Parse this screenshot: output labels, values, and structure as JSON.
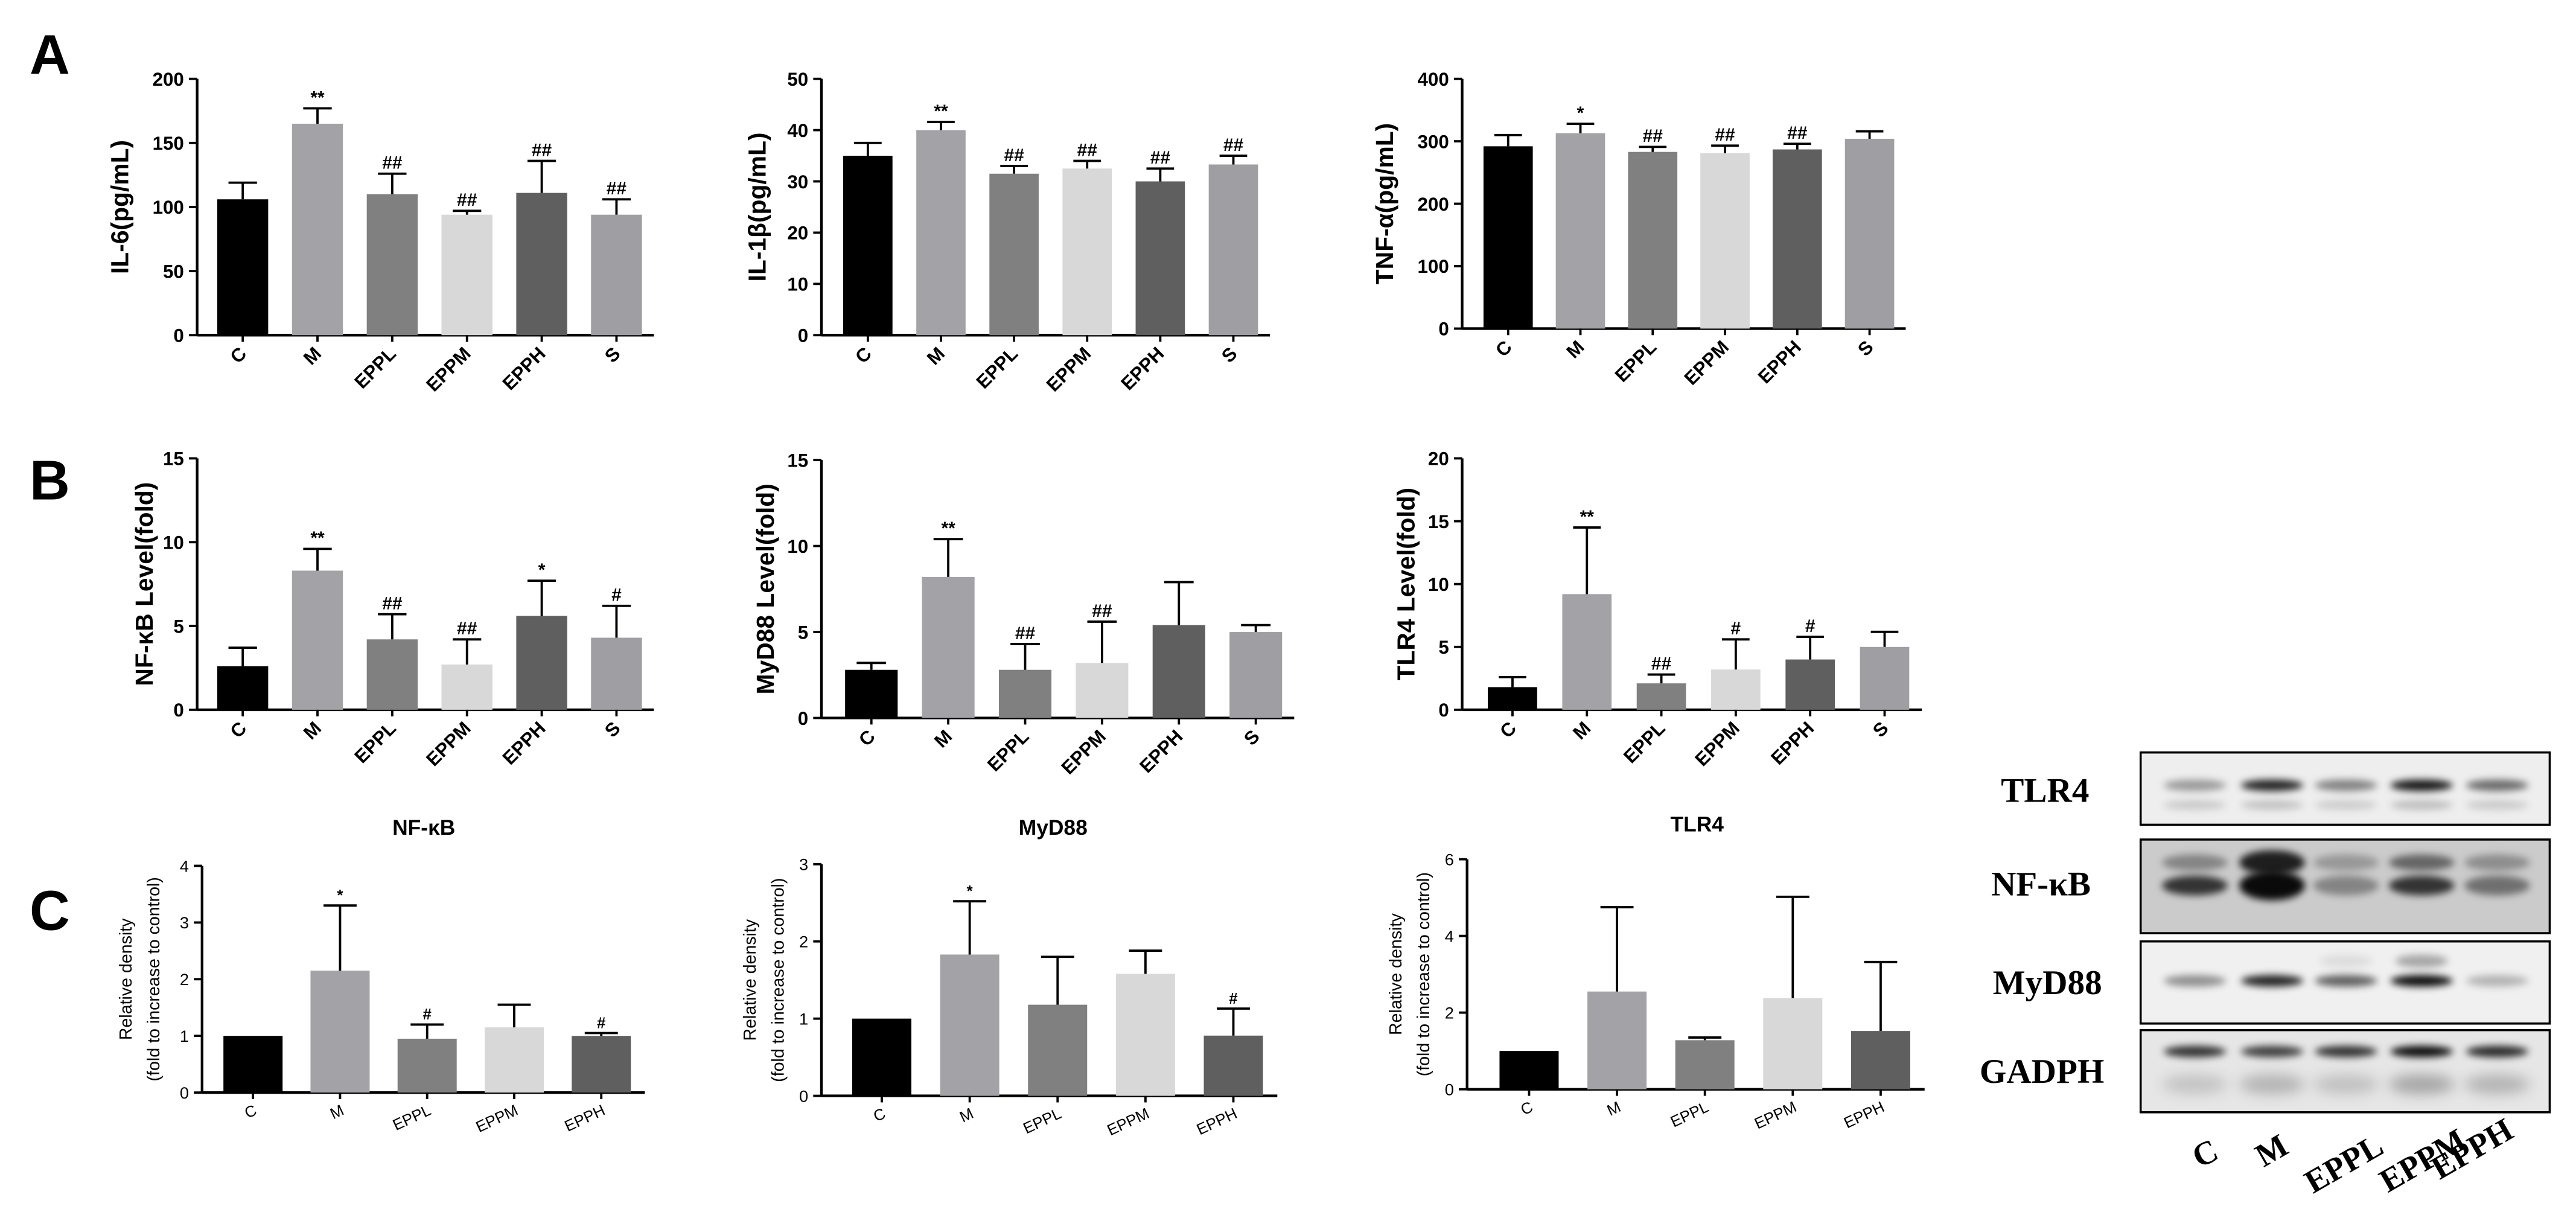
{
  "figure": {
    "panel_labels": [
      "A",
      "B",
      "C"
    ]
  },
  "bar_colors": [
    "#000000",
    "#a3a3a7",
    "#808080",
    "#d8d8d8",
    "#5f5f5f",
    "#9f9fa3"
  ],
  "chart_data": [
    {
      "id": "il6",
      "panel": "A",
      "type": "bar",
      "ylabel": [
        "IL-6(pg/mL)"
      ],
      "categories": [
        "C",
        "M",
        "EPPL",
        "EPPM",
        "EPPH",
        "S"
      ],
      "values": [
        106,
        165,
        110,
        94,
        111,
        94
      ],
      "errors": [
        13,
        12,
        16,
        3,
        25,
        12
      ],
      "annotations": [
        "",
        "**",
        "##",
        "##",
        "##",
        "##"
      ],
      "ylim": [
        0,
        200
      ],
      "yticks": [
        0,
        50,
        100,
        150,
        200
      ]
    },
    {
      "id": "il1b",
      "panel": "A",
      "type": "bar",
      "ylabel": [
        "IL-1β(pg/mL)"
      ],
      "categories": [
        "C",
        "M",
        "EPPL",
        "EPPM",
        "EPPH",
        "S"
      ],
      "values": [
        35,
        40,
        31.5,
        32.5,
        30,
        33.3
      ],
      "errors": [
        2.5,
        1.6,
        1.5,
        1.5,
        2.5,
        1.7
      ],
      "annotations": [
        "",
        "**",
        "##",
        "##",
        "##",
        "##"
      ],
      "ylim": [
        0,
        50
      ],
      "yticks": [
        0,
        10,
        20,
        30,
        40,
        50
      ]
    },
    {
      "id": "tnfa",
      "panel": "A",
      "type": "bar",
      "ylabel": [
        "TNF-α(pg/mL)"
      ],
      "categories": [
        "C",
        "M",
        "EPPL",
        "EPPM",
        "EPPH",
        "S"
      ],
      "values": [
        292,
        313,
        283,
        281,
        287,
        304
      ],
      "errors": [
        18,
        15,
        8,
        12,
        9,
        12
      ],
      "annotations": [
        "",
        "*",
        "##",
        "##",
        "##",
        ""
      ],
      "ylim": [
        0,
        400
      ],
      "yticks": [
        0,
        100,
        200,
        300,
        400
      ]
    },
    {
      "id": "nfkb-level",
      "panel": "B",
      "type": "bar",
      "ylabel": [
        "NF-κB Level(fold)"
      ],
      "categories": [
        "C",
        "M",
        "EPPL",
        "EPPM",
        "EPPH",
        "S"
      ],
      "values": [
        2.6,
        8.3,
        4.2,
        2.7,
        5.6,
        4.3
      ],
      "errors": [
        1.1,
        1.3,
        1.5,
        1.5,
        2.1,
        1.9
      ],
      "annotations": [
        "",
        "**",
        "##",
        "##",
        "*",
        "#"
      ],
      "ylim": [
        0,
        15
      ],
      "yticks": [
        0,
        5,
        10,
        15
      ]
    },
    {
      "id": "myd88-level",
      "panel": "B",
      "type": "bar",
      "ylabel": [
        "MyD88 Level(fold)"
      ],
      "categories": [
        "C",
        "M",
        "EPPL",
        "EPPM",
        "EPPH",
        "S"
      ],
      "values": [
        2.8,
        8.2,
        2.8,
        3.2,
        5.4,
        5.0
      ],
      "errors": [
        0.4,
        2.2,
        1.5,
        2.4,
        2.5,
        0.4
      ],
      "annotations": [
        "",
        "**",
        "##",
        "##",
        "",
        ""
      ],
      "ylim": [
        0,
        15
      ],
      "yticks": [
        0,
        5,
        10,
        15
      ]
    },
    {
      "id": "tlr4-level",
      "panel": "B",
      "type": "bar",
      "ylabel": [
        "TLR4 Level(fold)"
      ],
      "categories": [
        "C",
        "M",
        "EPPL",
        "EPPM",
        "EPPH",
        "S"
      ],
      "values": [
        1.8,
        9.2,
        2.1,
        3.2,
        4.0,
        5.0
      ],
      "errors": [
        0.8,
        5.3,
        0.7,
        2.4,
        1.8,
        1.2
      ],
      "annotations": [
        "",
        "**",
        "##",
        "#",
        "#",
        ""
      ],
      "ylim": [
        0,
        20
      ],
      "yticks": [
        0,
        5,
        10,
        15,
        20
      ]
    },
    {
      "id": "nfkb-density",
      "panel": "C",
      "type": "bar",
      "title": "NF-κB",
      "ylabel": [
        "Relative density",
        "(fold to increase to control)"
      ],
      "categories": [
        "C",
        "M",
        "EPPL",
        "EPPM",
        "EPPH"
      ],
      "values": [
        1.0,
        2.15,
        0.95,
        1.15,
        1.0
      ],
      "errors": [
        0,
        1.15,
        0.25,
        0.4,
        0.05
      ],
      "annotations": [
        "",
        "*",
        "#",
        "",
        "#"
      ],
      "ylim": [
        0,
        4
      ],
      "yticks": [
        0,
        1,
        2,
        3,
        4
      ]
    },
    {
      "id": "myd88-density",
      "panel": "C",
      "type": "bar",
      "title": "MyD88",
      "ylabel": [
        "Relative density",
        "(fold to increase to control)"
      ],
      "categories": [
        "C",
        "M",
        "EPPL",
        "EPPM",
        "EPPH"
      ],
      "values": [
        1.0,
        1.83,
        1.18,
        1.58,
        0.78
      ],
      "errors": [
        0,
        0.69,
        0.62,
        0.3,
        0.35
      ],
      "annotations": [
        "",
        "*",
        "",
        "",
        "#"
      ],
      "ylim": [
        0,
        3
      ],
      "yticks": [
        0,
        1,
        2,
        3
      ]
    },
    {
      "id": "tlr4-density",
      "panel": "C",
      "type": "bar",
      "title": "TLR4",
      "ylabel": [
        "Relative density",
        "(fold to increase to control)"
      ],
      "categories": [
        "C",
        "M",
        "EPPL",
        "EPPM",
        "EPPH"
      ],
      "values": [
        1.0,
        2.55,
        1.28,
        2.38,
        1.52
      ],
      "errors": [
        0,
        2.2,
        0.07,
        2.64,
        1.8
      ],
      "annotations": [
        "",
        "",
        "",
        "",
        ""
      ],
      "ylim": [
        0,
        6
      ],
      "yticks": [
        0,
        2,
        4,
        6
      ]
    }
  ],
  "western_blot": {
    "row_labels": [
      "TLR4",
      "NF-κB",
      "MyD88",
      "GADPH"
    ],
    "lane_labels": [
      "C",
      "M",
      "EPPL",
      "EPPM",
      "EPPH"
    ]
  }
}
